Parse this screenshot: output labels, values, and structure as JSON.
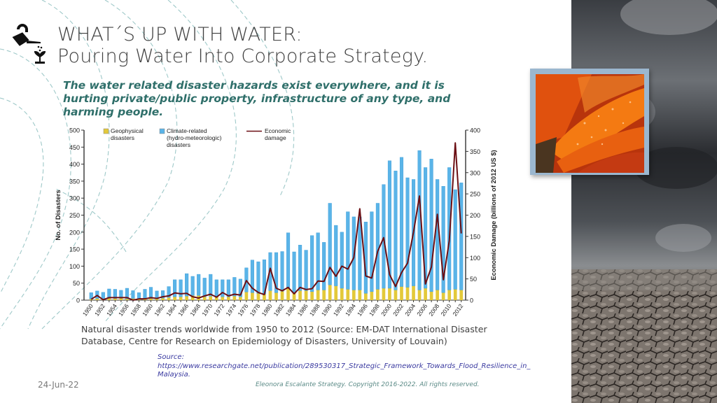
{
  "header": {
    "title_line1": "WHAT´S UP WITH WATER:",
    "title_line2": "Pouring Water Into Corporate Strategy.",
    "logo_icon": "watering-can-plant-icon"
  },
  "subtitle": "The water related disaster hazards exist everywhere, and it is hurting private/public property, infrastructure of any type, and harming people.",
  "caption": "Natural disaster trends worldwide from 1950 to 2012 (Source: EM-DAT International Disaster Database, Centre for Research on Epidemiology of Disasters, University of Louvain)",
  "source": {
    "label": "Source:",
    "url": "https://www.researchgate.net/publication/289530317_Strategic_Framework_Towards_Flood_Resilience_in_",
    "url_cont": "Malaysia."
  },
  "footer": {
    "date": "24-Jun-22",
    "copyright": "Eleonora Escalante Strategy. Copyright 2016-2022. All rights reserved."
  },
  "images": {
    "flower": "orange-flower-with-water-drops",
    "background": "storm-clouds-over-cracked-earth"
  },
  "colors": {
    "geophysical": "#e3c93a",
    "climate": "#5ab4e8",
    "economic": "#6b0f14",
    "subtitle": "#2f6f6a"
  },
  "chart_data": {
    "type": "bar",
    "title": "",
    "xlabel": "",
    "ylabel": "No. of Disasters",
    "y2label": "Economic Damage (billions of 2012 US $)",
    "ylim": [
      0,
      500
    ],
    "y2lim": [
      0,
      400
    ],
    "yticks": [
      "0",
      "50",
      "100",
      "150",
      "200",
      "250",
      "300",
      "350",
      "400",
      "450",
      "500"
    ],
    "y2ticks": [
      "0",
      "50",
      "100",
      "150",
      "200",
      "250",
      "300",
      "350",
      "400"
    ],
    "legend": [
      {
        "label_lines": [
          "Geophysical",
          "disasters"
        ],
        "kind": "box",
        "series": "geophysical"
      },
      {
        "label_lines": [
          "Climate-related",
          "(hydro-meteorologic)",
          "disasters"
        ],
        "kind": "box",
        "series": "climate"
      },
      {
        "label_lines": [
          "Economic",
          "damage"
        ],
        "kind": "line",
        "series": "economic"
      }
    ],
    "legend_position": "top-left",
    "grid": false,
    "categories": [
      1950,
      1951,
      1952,
      1953,
      1954,
      1955,
      1956,
      1957,
      1958,
      1959,
      1960,
      1961,
      1962,
      1963,
      1964,
      1965,
      1966,
      1967,
      1968,
      1969,
      1970,
      1971,
      1972,
      1973,
      1974,
      1975,
      1976,
      1977,
      1978,
      1979,
      1980,
      1981,
      1982,
      1983,
      1984,
      1985,
      1986,
      1987,
      1988,
      1989,
      1990,
      1991,
      1992,
      1993,
      1994,
      1995,
      1996,
      1997,
      1998,
      1999,
      2000,
      2001,
      2002,
      2003,
      2004,
      2005,
      2006,
      2007,
      2008,
      2009,
      2010,
      2011,
      2012
    ],
    "tick_labels": [
      "1950",
      "1952",
      "1954",
      "1956",
      "1958",
      "1960",
      "1962",
      "1964",
      "1966",
      "1968",
      "1970",
      "1972",
      "1974",
      "1976",
      "1978",
      "1980",
      "1982",
      "1984",
      "1986",
      "1988",
      "1990",
      "1992",
      "1994",
      "1996",
      "1998",
      "2000",
      "2002",
      "2004",
      "2006",
      "2008",
      "2010",
      "2012"
    ],
    "series": [
      {
        "name": "Geophysical disasters",
        "type": "bar-stacked",
        "axis": "left",
        "values": [
          3,
          5,
          3,
          6,
          5,
          6,
          4,
          5,
          4,
          6,
          5,
          4,
          6,
          8,
          10,
          10,
          12,
          14,
          14,
          10,
          12,
          10,
          10,
          10,
          12,
          10,
          24,
          22,
          20,
          18,
          28,
          22,
          26,
          35,
          22,
          28,
          28,
          25,
          30,
          30,
          45,
          42,
          35,
          32,
          30,
          30,
          20,
          25,
          32,
          35,
          35,
          30,
          40,
          38,
          42,
          30,
          35,
          25,
          30,
          22,
          30,
          32,
          30
        ]
      },
      {
        "name": "Climate-related (hydro-meteorologic) disasters",
        "type": "bar-stacked",
        "axis": "left",
        "values": [
          19,
          22,
          20,
          27,
          27,
          23,
          31,
          23,
          18,
          26,
          33,
          23,
          22,
          32,
          50,
          50,
          66,
          56,
          62,
          55,
          64,
          50,
          50,
          50,
          55,
          52,
          71,
          96,
          93,
          101,
          112,
          118,
          117,
          163,
          120,
          134,
          119,
          165,
          168,
          140,
          240,
          178,
          165,
          228,
          215,
          215,
          210,
          235,
          253,
          305,
          375,
          350,
          380,
          322,
          313,
          410,
          355,
          390,
          325,
          313,
          360,
          293,
          315
        ]
      },
      {
        "name": "Economic damage",
        "type": "line",
        "axis": "right",
        "values": [
          2,
          11,
          1,
          6,
          6,
          6,
          6,
          0,
          3,
          3,
          6,
          4,
          8,
          10,
          17,
          15,
          16,
          8,
          5,
          10,
          14,
          7,
          18,
          10,
          14,
          12,
          46,
          28,
          18,
          13,
          75,
          28,
          22,
          30,
          15,
          30,
          25,
          27,
          45,
          44,
          77,
          56,
          80,
          73,
          100,
          215,
          57,
          52,
          115,
          147,
          60,
          32,
          65,
          87,
          160,
          245,
          38,
          78,
          202,
          48,
          140,
          370,
          157
        ]
      }
    ]
  }
}
